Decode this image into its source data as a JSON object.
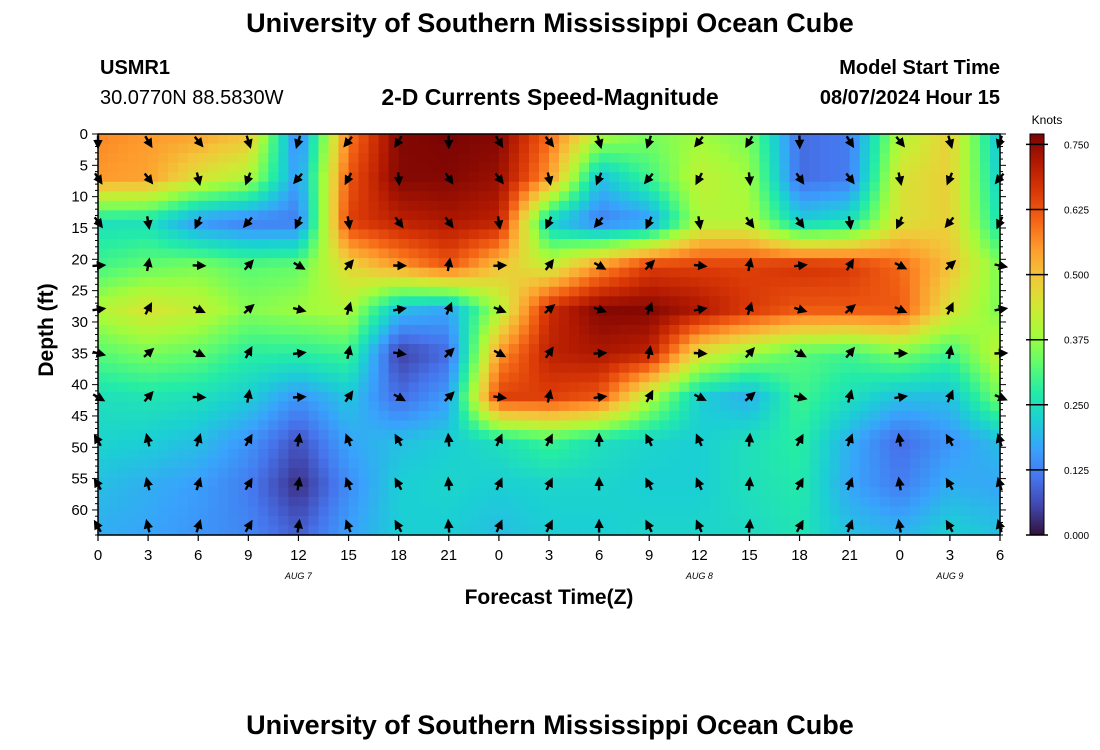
{
  "header": {
    "title": "University of Southern Mississippi Ocean Cube",
    "station": "USMR1",
    "coords": "30.0770N  88.5830W",
    "subtitle": "2-D Currents Speed-Magnitude",
    "model_label": "Model Start Time",
    "model_time": "08/07/2024 Hour 15"
  },
  "footer": {
    "title": "University of Southern Mississippi Ocean Cube"
  },
  "chart_data": {
    "type": "heatmap",
    "title": "2-D Currents Speed-Magnitude",
    "xlabel": "Forecast Time(Z)",
    "ylabel": "Depth (ft)",
    "x_ticks": [
      "0",
      "3",
      "6",
      "9",
      "12",
      "15",
      "18",
      "21",
      "0",
      "3",
      "6",
      "9",
      "12",
      "15",
      "18",
      "21",
      "0",
      "3",
      "6"
    ],
    "date_labels": [
      {
        "label": "AUG 7",
        "at_tick": 4
      },
      {
        "label": "AUG 8",
        "at_tick": 12
      },
      {
        "label": "AUG 9",
        "at_tick": 17
      }
    ],
    "y_ticks": [
      0,
      5,
      10,
      15,
      20,
      25,
      30,
      35,
      40,
      45,
      50,
      55,
      60
    ],
    "ylim": [
      0,
      64
    ],
    "colorbar": {
      "label": "Knots",
      "ticks": [
        "0.000",
        "0.125",
        "0.250",
        "0.375",
        "0.500",
        "0.625",
        "0.750"
      ],
      "range": [
        0,
        0.77
      ],
      "colors": [
        "#30123b",
        "#4145ab",
        "#4675ed",
        "#39a2fc",
        "#1bcfd4",
        "#24eca6",
        "#61fc6c",
        "#a4fc3b",
        "#d1e834",
        "#f3c63a",
        "#fe9b2d",
        "#f36315",
        "#d93806",
        "#b11901",
        "#7a0403"
      ]
    },
    "speed_grid": {
      "depths_ft": [
        0,
        7,
        14,
        21,
        28,
        35,
        42,
        49,
        56,
        63
      ],
      "columns": [
        [
          0.57,
          0.55,
          0.25,
          0.3,
          0.4,
          0.32,
          0.25,
          0.23,
          0.2,
          0.18
        ],
        [
          0.55,
          0.54,
          0.25,
          0.33,
          0.45,
          0.35,
          0.26,
          0.22,
          0.18,
          0.17
        ],
        [
          0.54,
          0.45,
          0.15,
          0.35,
          0.42,
          0.33,
          0.25,
          0.2,
          0.16,
          0.15
        ],
        [
          0.5,
          0.4,
          0.12,
          0.32,
          0.36,
          0.28,
          0.22,
          0.15,
          0.12,
          0.13
        ],
        [
          0.12,
          0.15,
          0.12,
          0.33,
          0.38,
          0.28,
          0.15,
          0.07,
          0.03,
          0.08
        ],
        [
          0.58,
          0.62,
          0.65,
          0.47,
          0.4,
          0.3,
          0.21,
          0.17,
          0.14,
          0.16
        ],
        [
          0.76,
          0.76,
          0.7,
          0.55,
          0.2,
          0.05,
          0.1,
          0.2,
          0.22,
          0.22
        ],
        [
          0.77,
          0.76,
          0.72,
          0.62,
          0.17,
          0.1,
          0.16,
          0.22,
          0.23,
          0.22
        ],
        [
          0.76,
          0.74,
          0.7,
          0.5,
          0.4,
          0.55,
          0.65,
          0.25,
          0.22,
          0.2
        ],
        [
          0.6,
          0.55,
          0.22,
          0.42,
          0.68,
          0.7,
          0.65,
          0.3,
          0.23,
          0.22
        ],
        [
          0.4,
          0.2,
          0.12,
          0.55,
          0.76,
          0.72,
          0.62,
          0.25,
          0.23,
          0.22
        ],
        [
          0.35,
          0.3,
          0.15,
          0.65,
          0.76,
          0.7,
          0.4,
          0.23,
          0.22,
          0.23
        ],
        [
          0.38,
          0.42,
          0.4,
          0.65,
          0.72,
          0.45,
          0.22,
          0.22,
          0.22,
          0.23
        ],
        [
          0.35,
          0.38,
          0.4,
          0.65,
          0.66,
          0.38,
          0.18,
          0.25,
          0.25,
          0.24
        ],
        [
          0.1,
          0.1,
          0.22,
          0.67,
          0.62,
          0.32,
          0.3,
          0.28,
          0.27,
          0.26
        ],
        [
          0.12,
          0.12,
          0.25,
          0.66,
          0.62,
          0.3,
          0.25,
          0.18,
          0.17,
          0.2
        ],
        [
          0.4,
          0.45,
          0.45,
          0.6,
          0.62,
          0.35,
          0.2,
          0.1,
          0.12,
          0.18
        ],
        [
          0.48,
          0.48,
          0.48,
          0.5,
          0.45,
          0.3,
          0.2,
          0.15,
          0.18,
          0.22
        ],
        [
          0.2,
          0.22,
          0.25,
          0.35,
          0.35,
          0.42,
          0.35,
          0.2,
          0.17,
          0.2
        ]
      ]
    }
  }
}
